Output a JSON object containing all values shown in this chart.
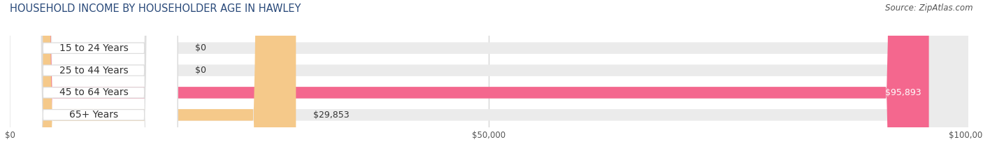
{
  "title": "HOUSEHOLD INCOME BY HOUSEHOLDER AGE IN HAWLEY",
  "source": "Source: ZipAtlas.com",
  "categories": [
    "15 to 24 Years",
    "25 to 44 Years",
    "45 to 64 Years",
    "65+ Years"
  ],
  "values": [
    0,
    0,
    95893,
    29853
  ],
  "bar_colors": [
    "#5dcfcf",
    "#a89fd8",
    "#f4678e",
    "#f5c98a"
  ],
  "x_max": 100000,
  "x_ticks": [
    0,
    50000,
    100000
  ],
  "x_tick_labels": [
    "$0",
    "$50,000",
    "$100,000"
  ],
  "value_labels": [
    "$0",
    "$0",
    "$95,893",
    "$29,853"
  ],
  "title_fontsize": 10.5,
  "source_fontsize": 8.5,
  "label_fontsize": 10,
  "value_fontsize": 9,
  "background_color": "#ffffff",
  "bar_height": 0.52,
  "label_box_color": "#ffffff",
  "bg_bar_color": "#ebebeb"
}
